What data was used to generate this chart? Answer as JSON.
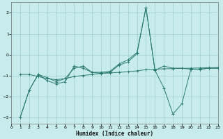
{
  "xlabel": "Humidex (Indice chaleur)",
  "bg_color": "#c8ecec",
  "line_color": "#2a7a72",
  "grid_color": "#9ecece",
  "xlim": [
    0,
    23
  ],
  "ylim": [
    -3.3,
    2.5
  ],
  "yticks": [
    -3,
    -2,
    -1,
    0,
    1,
    2
  ],
  "xticks": [
    0,
    1,
    2,
    3,
    4,
    5,
    6,
    7,
    8,
    9,
    10,
    11,
    12,
    13,
    14,
    15,
    16,
    17,
    18,
    19,
    20,
    21,
    22,
    23
  ],
  "line1_x": [
    1,
    2,
    3,
    4,
    5,
    6,
    7,
    8,
    9,
    10,
    11,
    12,
    13,
    14,
    15,
    16,
    17,
    18,
    19,
    20,
    21,
    22,
    23
  ],
  "line1_y": [
    -3.0,
    -1.7,
    -0.95,
    -1.1,
    -1.3,
    -1.15,
    -0.65,
    -0.55,
    -0.85,
    -0.85,
    -0.8,
    -0.45,
    -0.25,
    0.1,
    2.25,
    -0.75,
    -0.55,
    -0.65,
    -0.65,
    -0.7,
    -0.7,
    -0.65,
    -0.65
  ],
  "line2_x": [
    1,
    2,
    3,
    4,
    5,
    6,
    7,
    8,
    9,
    10,
    11,
    12,
    13,
    14,
    15,
    16,
    17,
    18,
    19,
    20,
    21,
    22,
    23
  ],
  "line2_y": [
    -3.0,
    -1.7,
    -0.95,
    -1.25,
    -1.4,
    -1.3,
    -0.55,
    -0.65,
    -0.85,
    -0.9,
    -0.85,
    -0.5,
    -0.35,
    0.05,
    2.25,
    -0.75,
    -1.6,
    -2.85,
    -2.35,
    -0.7,
    -0.7,
    -0.65,
    -0.65
  ],
  "line3_x": [
    1,
    2,
    3,
    4,
    5,
    6,
    7,
    8,
    9,
    10,
    11,
    12,
    13,
    14,
    15,
    16,
    17,
    18,
    19,
    20,
    21,
    22,
    23
  ],
  "line3_y": [
    -0.95,
    -0.95,
    -1.05,
    -1.15,
    -1.2,
    -1.15,
    -1.05,
    -1.0,
    -0.95,
    -0.9,
    -0.88,
    -0.85,
    -0.82,
    -0.78,
    -0.72,
    -0.7,
    -0.68,
    -0.67,
    -0.66,
    -0.65,
    -0.64,
    -0.63,
    -0.62
  ]
}
